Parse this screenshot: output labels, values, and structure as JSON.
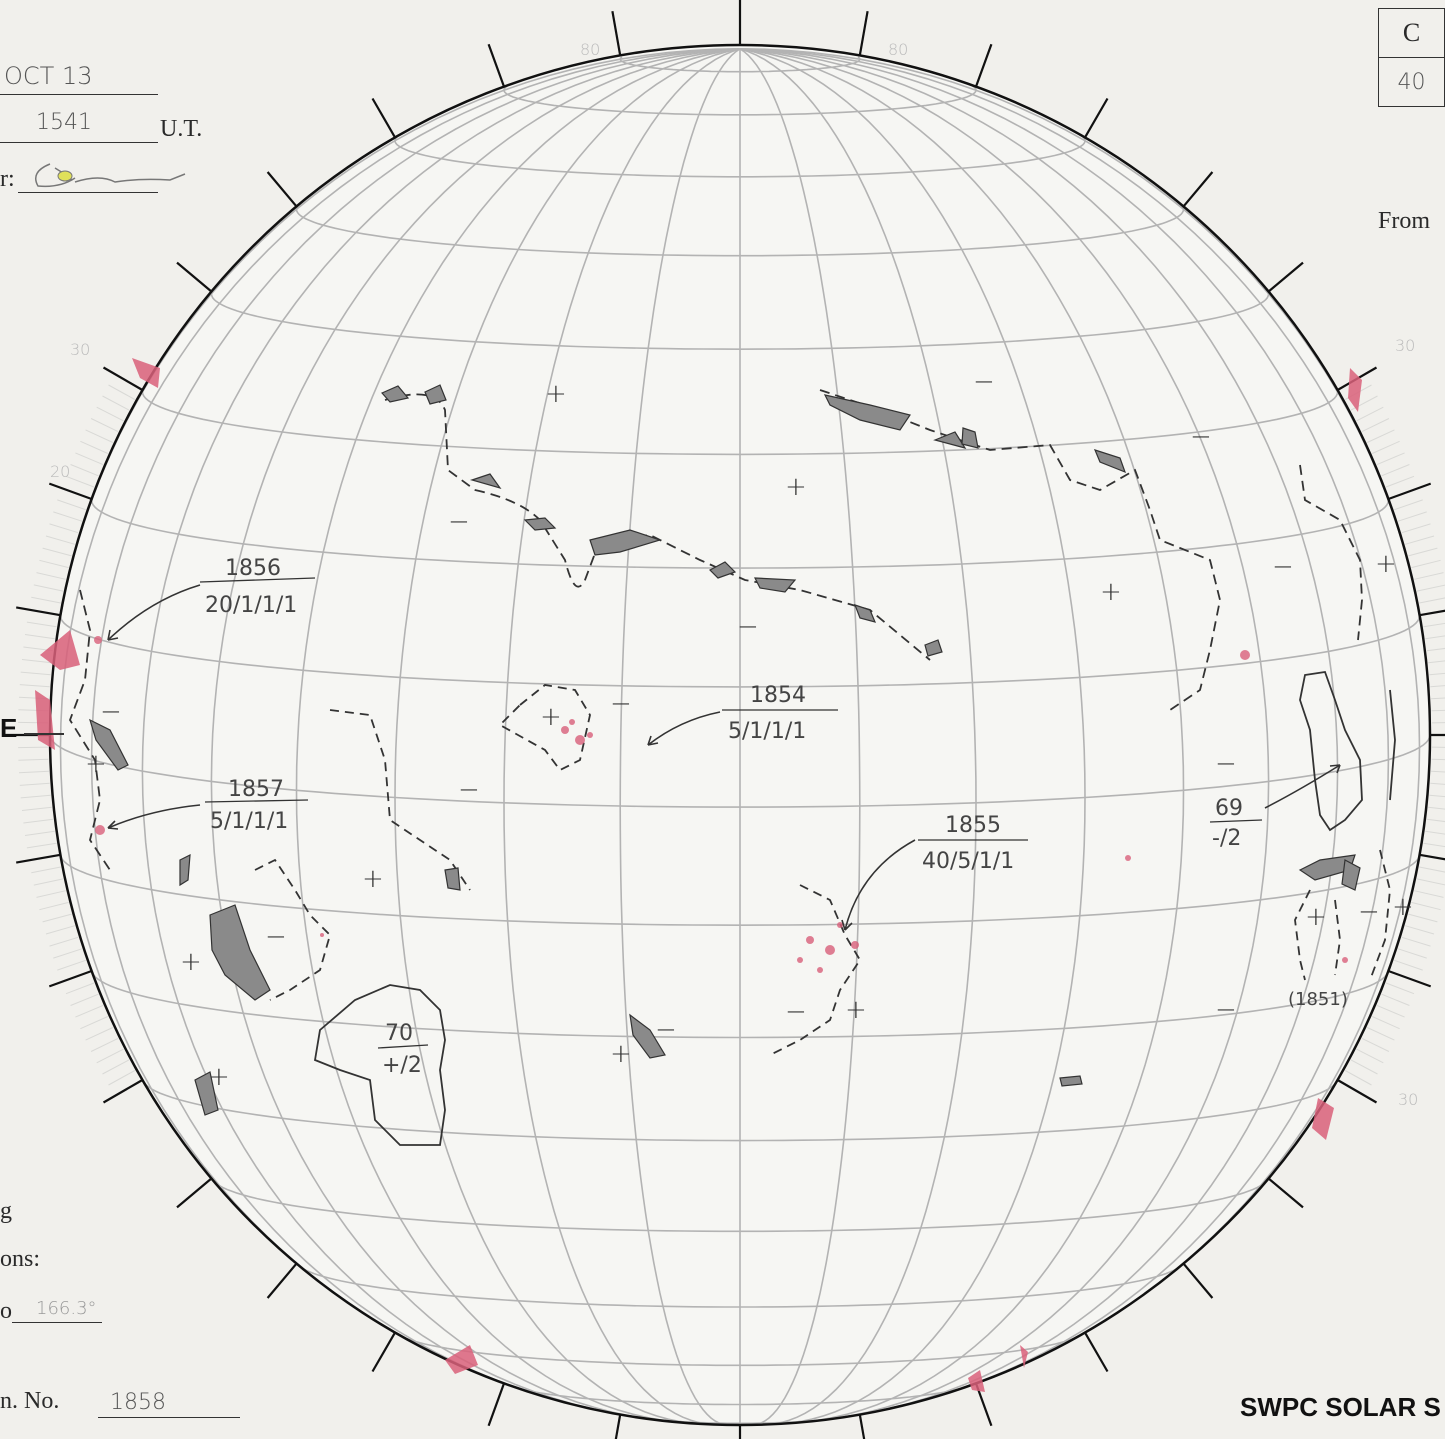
{
  "header": {
    "date_value": "OCT 13",
    "time_value": "1541",
    "time_unit": "U.T.",
    "observer_label": "r:"
  },
  "corner_table": {
    "header": "C",
    "value": "40"
  },
  "from_label": "From",
  "east_marker": "E",
  "left_notes": {
    "line1": "g",
    "line2": "ons:",
    "line3_prefix": "o",
    "line3_value": "166.3°",
    "region_label": "n. No.",
    "region_value": "1858"
  },
  "footer_title": "SWPC SOLAR S",
  "grid_tick_labels": [
    "80",
    "30",
    "20",
    "30",
    "30",
    "80"
  ],
  "regions": [
    {
      "number": "1856",
      "stats": "20/1/1/1"
    },
    {
      "number": "1854",
      "stats": "5/1/1/1"
    },
    {
      "number": "1857",
      "stats": "5/1/1/1"
    },
    {
      "number": "1855",
      "stats": "40/5/1/1"
    },
    {
      "number": "69",
      "stats": "-/2"
    },
    {
      "number": "70",
      "stats": "+/2"
    },
    {
      "number": "(1851)",
      "stats": ""
    }
  ],
  "colors": {
    "paper": "#f1f0ec",
    "disk": "#f6f6f3",
    "grid": "#b3b3b3",
    "ink": "#333333",
    "plage": "#d9607a"
  }
}
